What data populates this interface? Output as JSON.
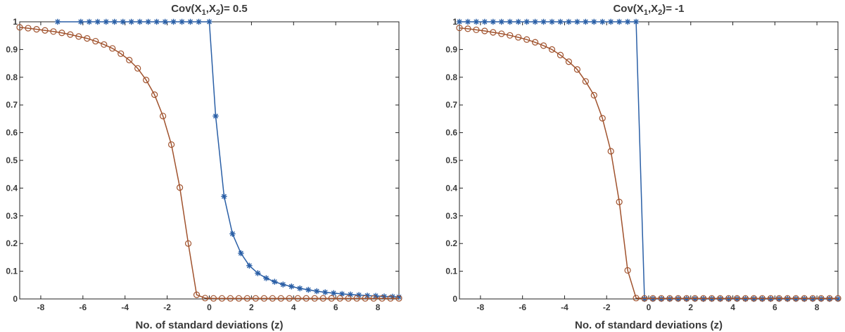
{
  "chart_data": [
    {
      "type": "line",
      "title": "Cov(X1,X2)= 0.5",
      "title_parts": {
        "pre": "Cov(X",
        "sub1": "1",
        "mid": ",X",
        "sub2": "2",
        "post": ")= 0.5"
      },
      "xlabel": "No. of standard deviations (z)",
      "ylabel": "",
      "xlim": [
        -9,
        9
      ],
      "ylim": [
        0,
        1
      ],
      "xticks": [
        -8,
        -6,
        -4,
        -2,
        0,
        2,
        4,
        6,
        8
      ],
      "yticks": [
        0,
        0.1,
        0.2,
        0.3,
        0.4,
        0.5,
        0.6,
        0.7,
        0.8,
        0.9,
        1
      ],
      "ytick_labels": [
        "0",
        "0.1",
        "0.2",
        "0.3",
        "0.4",
        "0.5",
        "0.6",
        "0.7",
        "0.8",
        "0.9",
        "1"
      ],
      "grid": false,
      "series": [
        {
          "color": "#2a5fa6",
          "marker": "asterisk",
          "x": [
            -7.2,
            -6.1,
            -5.7,
            -5.3,
            -4.9,
            -4.5,
            -4.1,
            -3.7,
            -3.3,
            -2.9,
            -2.5,
            -2.1,
            -1.7,
            -1.3,
            -0.9,
            -0.5,
            0.0,
            0.3,
            0.7,
            1.1,
            1.5,
            1.9,
            2.3,
            2.7,
            3.1,
            3.5,
            3.9,
            4.3,
            4.7,
            5.1,
            5.5,
            5.9,
            6.3,
            6.7,
            7.1,
            7.5,
            7.9,
            8.3,
            8.7,
            9.0
          ],
          "y": [
            1,
            1,
            1,
            1,
            1,
            1,
            1,
            1,
            1,
            1,
            1,
            1,
            1,
            1,
            1,
            1,
            1,
            0.66,
            0.37,
            0.235,
            0.165,
            0.12,
            0.093,
            0.075,
            0.062,
            0.052,
            0.045,
            0.038,
            0.033,
            0.028,
            0.024,
            0.021,
            0.018,
            0.016,
            0.014,
            0.012,
            0.011,
            0.009,
            0.008,
            0.007
          ]
        },
        {
          "color": "#a0522d",
          "marker": "circle",
          "x": [
            -9.0,
            -8.6,
            -8.2,
            -7.8,
            -7.4,
            -7.0,
            -6.6,
            -6.2,
            -5.8,
            -5.4,
            -5.0,
            -4.6,
            -4.2,
            -3.8,
            -3.4,
            -3.0,
            -2.6,
            -2.2,
            -1.8,
            -1.4,
            -1.0,
            -0.6,
            -0.2,
            0.2,
            0.6,
            1.0,
            1.4,
            1.8,
            2.2,
            2.6,
            3.0,
            3.4,
            3.8,
            4.2,
            4.6,
            5.0,
            5.4,
            5.8,
            6.2,
            6.6,
            7.0,
            7.4,
            7.8,
            8.2,
            8.6,
            9.0
          ],
          "y": [
            0.98,
            0.977,
            0.973,
            0.969,
            0.965,
            0.96,
            0.954,
            0.947,
            0.94,
            0.93,
            0.918,
            0.904,
            0.885,
            0.862,
            0.832,
            0.79,
            0.737,
            0.66,
            0.557,
            0.402,
            0.2,
            0.015,
            0.003,
            0.002,
            0.002,
            0.002,
            0.002,
            0.002,
            0.002,
            0.002,
            0.002,
            0.002,
            0.002,
            0.002,
            0.002,
            0.002,
            0.002,
            0.002,
            0.002,
            0.002,
            0.002,
            0.002,
            0.002,
            0.002,
            0.002,
            0.002
          ]
        }
      ]
    },
    {
      "type": "line",
      "title": "Cov(X1,X2)= -1",
      "title_parts": {
        "pre": "Cov(X",
        "sub1": "1",
        "mid": ",X",
        "sub2": "2",
        "post": ")= -1"
      },
      "xlabel": "No. of standard deviations (z)",
      "ylabel": "",
      "xlim": [
        -9,
        9
      ],
      "ylim": [
        0,
        1
      ],
      "xticks": [
        -8,
        -6,
        -4,
        -2,
        0,
        2,
        4,
        6,
        8
      ],
      "yticks": [
        0,
        0.1,
        0.2,
        0.3,
        0.4,
        0.5,
        0.6,
        0.7,
        0.8,
        0.9,
        1
      ],
      "ytick_labels": [
        "0",
        "0.1",
        "0.2",
        "0.3",
        "0.4",
        "0.5",
        "0.6",
        "0.7",
        "0.8",
        "0.9",
        "1"
      ],
      "grid": false,
      "series": [
        {
          "color": "#2a5fa6",
          "marker": "asterisk",
          "x": [
            -9.0,
            -8.6,
            -8.2,
            -7.8,
            -7.4,
            -7.0,
            -6.6,
            -6.2,
            -5.8,
            -5.4,
            -5.0,
            -4.6,
            -4.2,
            -3.8,
            -3.4,
            -3.0,
            -2.6,
            -2.2,
            -1.8,
            -1.4,
            -1.0,
            -0.6,
            -0.2,
            0.2,
            0.6,
            1.0,
            1.4,
            1.8,
            2.2,
            2.6,
            3.0,
            3.4,
            3.8,
            4.2,
            4.6,
            5.0,
            5.4,
            5.8,
            6.2,
            6.6,
            7.0,
            7.4,
            7.8,
            8.2,
            8.6,
            9.0
          ],
          "y": [
            1,
            1,
            1,
            1,
            1,
            1,
            1,
            1,
            1,
            1,
            1,
            1,
            1,
            1,
            1,
            1,
            1,
            1,
            1,
            1,
            1,
            1,
            0,
            0,
            0,
            0,
            0,
            0,
            0,
            0,
            0,
            0,
            0,
            0,
            0,
            0,
            0,
            0,
            0,
            0,
            0,
            0,
            0,
            0,
            0,
            0
          ]
        },
        {
          "color": "#a0522d",
          "marker": "circle",
          "x": [
            -9.0,
            -8.6,
            -8.2,
            -7.8,
            -7.4,
            -7.0,
            -6.6,
            -6.2,
            -5.8,
            -5.4,
            -5.0,
            -4.6,
            -4.2,
            -3.8,
            -3.4,
            -3.0,
            -2.6,
            -2.2,
            -1.8,
            -1.4,
            -1.0,
            -0.6,
            -0.2,
            0.2,
            0.6,
            1.0,
            1.4,
            1.8,
            2.2,
            2.6,
            3.0,
            3.4,
            3.8,
            4.2,
            4.6,
            5.0,
            5.4,
            5.8,
            6.2,
            6.6,
            7.0,
            7.4,
            7.8,
            8.2,
            8.6,
            9.0
          ],
          "y": [
            0.978,
            0.975,
            0.971,
            0.967,
            0.962,
            0.957,
            0.951,
            0.944,
            0.936,
            0.926,
            0.914,
            0.9,
            0.88,
            0.856,
            0.828,
            0.785,
            0.735,
            0.652,
            0.533,
            0.35,
            0.103,
            0.003,
            0.002,
            0.002,
            0.002,
            0.002,
            0.002,
            0.002,
            0.002,
            0.002,
            0.002,
            0.002,
            0.002,
            0.002,
            0.002,
            0.002,
            0.002,
            0.002,
            0.002,
            0.002,
            0.002,
            0.002,
            0.002,
            0.002,
            0.002,
            0.002
          ]
        }
      ]
    }
  ]
}
